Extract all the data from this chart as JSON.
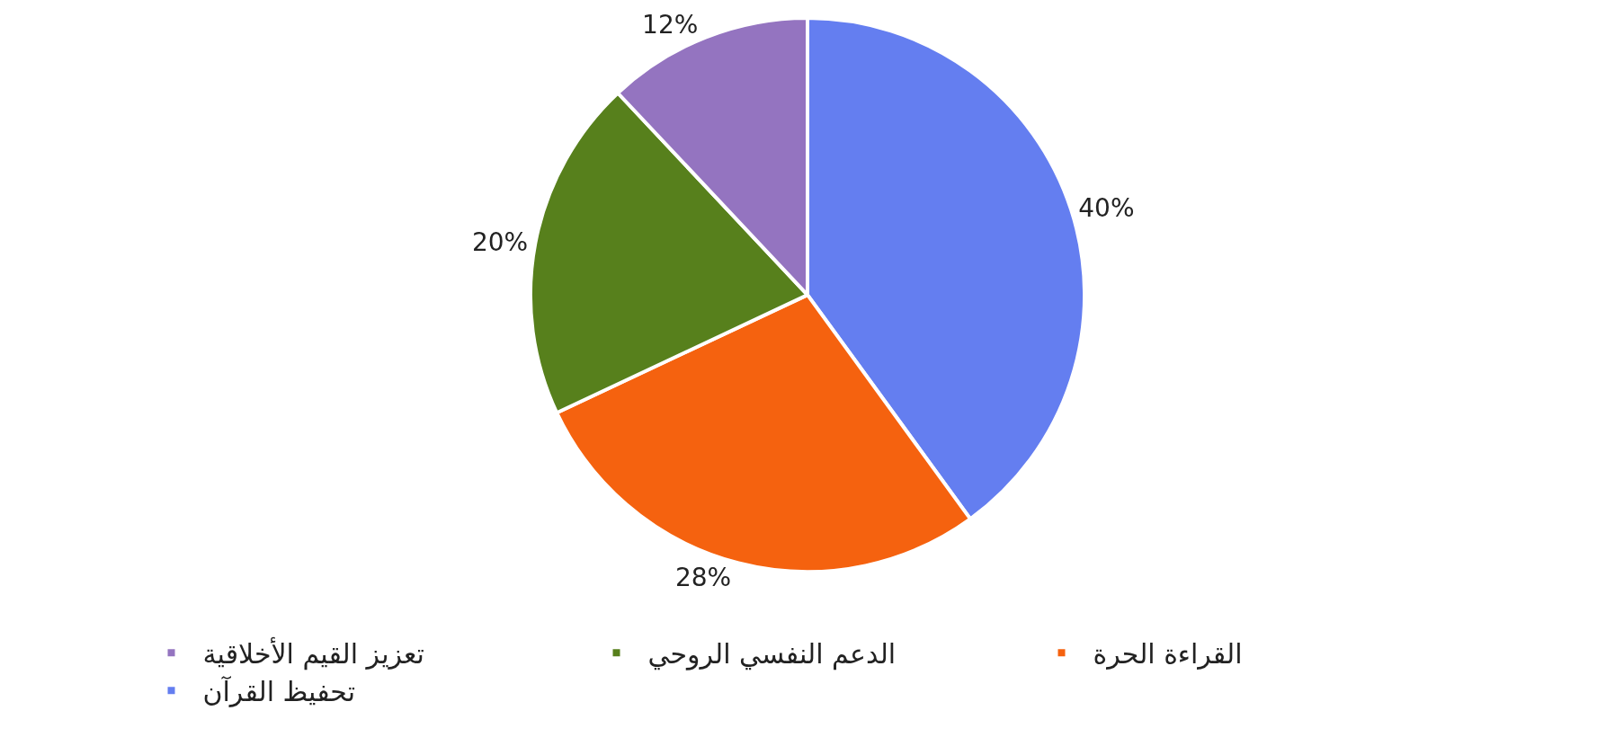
{
  "chart_data": {
    "type": "pie",
    "categories": [
      "تحفيظ القرآن",
      "القراءة الحرة",
      "الدعم النفسي الروحي",
      "تعزيز القيم الأخلاقية"
    ],
    "values": [
      40,
      28,
      20,
      12
    ],
    "colors": [
      "#647ef0",
      "#f5620f",
      "#57801c",
      "#9474c0"
    ],
    "value_labels": [
      "40%",
      "28%",
      "20%",
      "12%"
    ],
    "legend": "bottom"
  }
}
